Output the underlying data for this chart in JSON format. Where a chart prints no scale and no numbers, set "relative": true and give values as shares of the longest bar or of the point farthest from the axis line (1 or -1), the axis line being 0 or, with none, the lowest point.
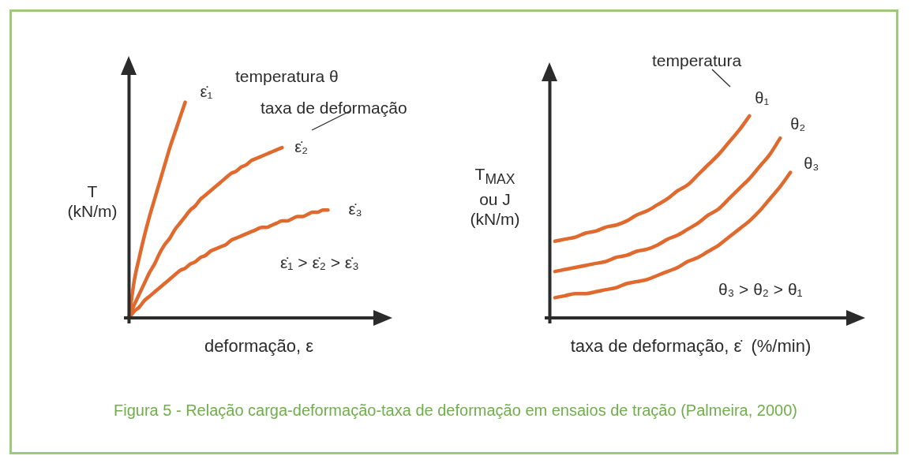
{
  "chart_data": [
    {
      "type": "line",
      "relative": true,
      "xlabel": "deformação, ε",
      "ylabel": "T (kN/m)",
      "categories": [
        null,
        null,
        null,
        null,
        null,
        null,
        null,
        null,
        null,
        null,
        null,
        null,
        null,
        null,
        null,
        null,
        null,
        null,
        null,
        null,
        null,
        null,
        null,
        null,
        null,
        null,
        null,
        null,
        null,
        null,
        null,
        null,
        null,
        null,
        null,
        null,
        null,
        null,
        null,
        null
      ],
      "series": [
        {
          "name": "ε̇₁",
          "color": "#e0692e",
          "values": [
            0,
            0.17,
            0.28,
            0.38,
            0.47,
            0.55,
            0.63,
            0.71,
            0.79,
            0.86,
            0.93,
            1.0,
            null,
            null,
            null,
            null,
            null,
            null,
            null,
            null,
            null,
            null,
            null,
            null,
            null,
            null,
            null,
            null,
            null,
            null,
            null,
            null,
            null,
            null,
            null,
            null,
            null,
            null,
            null,
            null
          ]
        },
        {
          "name": "ε̇₂",
          "color": "#e0692e",
          "values": [
            0,
            0.06,
            0.11,
            0.16,
            0.21,
            0.25,
            0.3,
            0.34,
            0.37,
            0.41,
            0.44,
            0.47,
            0.5,
            0.52,
            0.55,
            0.57,
            0.59,
            0.61,
            0.63,
            0.65,
            0.67,
            0.68,
            0.7,
            0.71,
            0.73,
            0.74,
            0.75,
            0.76,
            0.77,
            0.78,
            0.79,
            null,
            null,
            null,
            null,
            null,
            null,
            null,
            null,
            null
          ]
        },
        {
          "name": "ε̇₃",
          "color": "#e0692e",
          "values": [
            0,
            0.03,
            0.05,
            0.08,
            0.1,
            0.12,
            0.14,
            0.16,
            0.18,
            0.2,
            0.22,
            0.23,
            0.25,
            0.26,
            0.28,
            0.29,
            0.31,
            0.32,
            0.33,
            0.34,
            0.36,
            0.37,
            0.38,
            0.39,
            0.4,
            0.41,
            0.42,
            0.42,
            0.43,
            0.44,
            0.45,
            0.45,
            0.46,
            0.47,
            0.47,
            0.48,
            0.49,
            0.49,
            0.5,
            0.5
          ]
        }
      ],
      "annotations": [
        "temperatura θ",
        "taxa de deformação",
        "ε̇₁ > ε̇₂ > ε̇₃"
      ]
    },
    {
      "type": "line",
      "relative": true,
      "xlabel": "taxa de deformação, ε̇  (%/min)",
      "ylabel": "T$_{MAX}$ ou J (kN/m)",
      "categories": [
        null,
        null,
        null,
        null,
        null,
        null,
        null,
        null,
        null,
        null,
        null,
        null,
        null,
        null,
        null,
        null,
        null,
        null,
        null,
        null,
        null,
        null,
        null,
        null
      ],
      "series": [
        {
          "name": "θ₁",
          "color": "#e0692e",
          "values": [
            0.38,
            0.39,
            0.4,
            0.42,
            0.43,
            0.45,
            0.46,
            0.48,
            0.51,
            0.53,
            0.56,
            0.59,
            0.63,
            0.66,
            0.71,
            0.76,
            0.81,
            0.87,
            0.93,
            1.0,
            null,
            null,
            null,
            null
          ]
        },
        {
          "name": "θ₂",
          "color": "#e0692e",
          "values": [
            0.23,
            0.24,
            0.25,
            0.26,
            0.27,
            0.28,
            0.3,
            0.31,
            0.33,
            0.34,
            0.36,
            0.39,
            0.41,
            0.44,
            0.47,
            0.51,
            0.54,
            0.59,
            0.64,
            0.69,
            0.75,
            0.81,
            0.89,
            null
          ]
        },
        {
          "name": "θ₃",
          "color": "#e0692e",
          "values": [
            0.1,
            0.11,
            0.12,
            0.12,
            0.13,
            0.14,
            0.15,
            0.17,
            0.18,
            0.19,
            0.21,
            0.23,
            0.25,
            0.28,
            0.3,
            0.33,
            0.36,
            0.4,
            0.44,
            0.48,
            0.53,
            0.59,
            0.65,
            0.72
          ]
        }
      ],
      "annotations": [
        "temperatura",
        "θ₃ > θ₂ > θ₁",
        "Figura 5 - Relação carga-deformação-taxa de deformação em ensaios de tração (Palmeira, 2000)"
      ]
    }
  ]
}
